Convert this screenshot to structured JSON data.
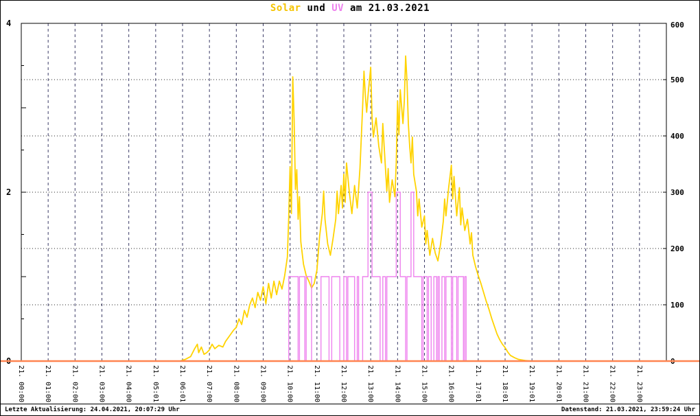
{
  "title": {
    "solar": "Solar",
    "und": " und ",
    "uv": "UV",
    "date": " am 21.03.2021"
  },
  "footer": {
    "left": "Letzte Aktualisierung: 24.04.2021, 20:07:29 Uhr",
    "right": "Datenstand: 21.03.2021, 23:59:24 Uhr"
  },
  "colors": {
    "solar": "#ffd300",
    "uv": "#ee82ee",
    "baseline": "#ff8450",
    "grid_v": "#3b3b66",
    "grid_h": "#222222",
    "axis": "#000000"
  },
  "chart_data": {
    "type": "line",
    "title": "Solar und UV am 21.03.2021",
    "grid": {
      "vertical": "dashed, every hour",
      "horizontal": "dotted, every 100 W/m2"
    },
    "legend": "none (colors indicated in title)",
    "x": {
      "min": 0,
      "max": 24,
      "tick_hours": [
        0,
        1,
        2,
        3,
        4,
        5,
        6,
        7,
        8,
        9,
        10,
        11,
        12,
        13,
        14,
        15,
        16,
        17,
        18,
        19,
        20,
        21,
        22,
        23
      ],
      "tick_labels": [
        "21. 00:00",
        "21. 01:00",
        "21. 02:00",
        "21. 03:00",
        "21. 04:00",
        "21. 05:01",
        "21. 06:01",
        "21. 07:00",
        "21. 08:00",
        "21. 09:00",
        "21. 10:00",
        "21. 11:00",
        "21. 12:00",
        "21. 13:00",
        "21. 14:00",
        "21. 15:00",
        "21. 16:00",
        "21. 17:01",
        "21. 18:01",
        "21. 19:01",
        "21. 20:01",
        "21. 21:00",
        "21. 22:00",
        "21. 23:00"
      ]
    },
    "left_axis": {
      "series": "UV",
      "min": 0,
      "max": 4,
      "ticks": [
        0,
        2,
        4
      ]
    },
    "right_axis": {
      "series": "Solar",
      "min": 0,
      "max": 600,
      "ticks": [
        0,
        100,
        200,
        300,
        400,
        500,
        600
      ]
    },
    "series": [
      {
        "name": "Solar",
        "axis": "right",
        "style": "line",
        "color_key": "solar",
        "points": [
          [
            0,
            0
          ],
          [
            5.9,
            0
          ],
          [
            6.1,
            3
          ],
          [
            6.3,
            8
          ],
          [
            6.45,
            22
          ],
          [
            6.55,
            30
          ],
          [
            6.6,
            15
          ],
          [
            6.7,
            25
          ],
          [
            6.8,
            12
          ],
          [
            6.9,
            15
          ],
          [
            7.0,
            20
          ],
          [
            7.1,
            30
          ],
          [
            7.2,
            22
          ],
          [
            7.35,
            28
          ],
          [
            7.5,
            25
          ],
          [
            7.6,
            35
          ],
          [
            7.75,
            45
          ],
          [
            7.9,
            55
          ],
          [
            8.0,
            60
          ],
          [
            8.1,
            75
          ],
          [
            8.2,
            65
          ],
          [
            8.3,
            90
          ],
          [
            8.4,
            78
          ],
          [
            8.5,
            100
          ],
          [
            8.6,
            112
          ],
          [
            8.7,
            95
          ],
          [
            8.8,
            122
          ],
          [
            8.9,
            108
          ],
          [
            9.0,
            132
          ],
          [
            9.1,
            102
          ],
          [
            9.2,
            138
          ],
          [
            9.3,
            112
          ],
          [
            9.4,
            142
          ],
          [
            9.5,
            118
          ],
          [
            9.6,
            142
          ],
          [
            9.7,
            128
          ],
          [
            9.8,
            152
          ],
          [
            9.9,
            185
          ],
          [
            9.95,
            255
          ],
          [
            10.0,
            345
          ],
          [
            10.05,
            262
          ],
          [
            10.1,
            505
          ],
          [
            10.15,
            430
          ],
          [
            10.2,
            305
          ],
          [
            10.25,
            340
          ],
          [
            10.3,
            252
          ],
          [
            10.35,
            292
          ],
          [
            10.4,
            212
          ],
          [
            10.5,
            172
          ],
          [
            10.6,
            152
          ],
          [
            10.7,
            142
          ],
          [
            10.8,
            130
          ],
          [
            10.9,
            138
          ],
          [
            11.0,
            162
          ],
          [
            11.1,
            222
          ],
          [
            11.2,
            262
          ],
          [
            11.25,
            302
          ],
          [
            11.3,
            252
          ],
          [
            11.4,
            208
          ],
          [
            11.5,
            188
          ],
          [
            11.6,
            218
          ],
          [
            11.7,
            252
          ],
          [
            11.75,
            302
          ],
          [
            11.8,
            262
          ],
          [
            11.9,
            312
          ],
          [
            11.95,
            272
          ],
          [
            12.0,
            332
          ],
          [
            12.05,
            282
          ],
          [
            12.1,
            352
          ],
          [
            12.2,
            302
          ],
          [
            12.3,
            262
          ],
          [
            12.4,
            312
          ],
          [
            12.5,
            272
          ],
          [
            12.6,
            342
          ],
          [
            12.7,
            452
          ],
          [
            12.75,
            515
          ],
          [
            12.8,
            472
          ],
          [
            12.85,
            442
          ],
          [
            12.9,
            472
          ],
          [
            13.0,
            522
          ],
          [
            13.05,
            432
          ],
          [
            13.1,
            398
          ],
          [
            13.2,
            432
          ],
          [
            13.3,
            382
          ],
          [
            13.4,
            352
          ],
          [
            13.45,
            422
          ],
          [
            13.5,
            382
          ],
          [
            13.6,
            302
          ],
          [
            13.65,
            342
          ],
          [
            13.7,
            282
          ],
          [
            13.8,
            322
          ],
          [
            13.9,
            292
          ],
          [
            13.95,
            352
          ],
          [
            14.0,
            462
          ],
          [
            14.05,
            402
          ],
          [
            14.1,
            482
          ],
          [
            14.2,
            422
          ],
          [
            14.25,
            462
          ],
          [
            14.3,
            542
          ],
          [
            14.35,
            498
          ],
          [
            14.4,
            422
          ],
          [
            14.45,
            382
          ],
          [
            14.5,
            352
          ],
          [
            14.55,
            398
          ],
          [
            14.6,
            332
          ],
          [
            14.7,
            302
          ],
          [
            14.75,
            258
          ],
          [
            14.8,
            288
          ],
          [
            14.9,
            238
          ],
          [
            15.0,
            258
          ],
          [
            15.05,
            208
          ],
          [
            15.1,
            232
          ],
          [
            15.2,
            188
          ],
          [
            15.3,
            218
          ],
          [
            15.4,
            192
          ],
          [
            15.5,
            178
          ],
          [
            15.6,
            208
          ],
          [
            15.7,
            248
          ],
          [
            15.75,
            288
          ],
          [
            15.8,
            258
          ],
          [
            15.9,
            308
          ],
          [
            16.0,
            348
          ],
          [
            16.05,
            288
          ],
          [
            16.1,
            328
          ],
          [
            16.2,
            258
          ],
          [
            16.3,
            308
          ],
          [
            16.35,
            242
          ],
          [
            16.4,
            272
          ],
          [
            16.5,
            232
          ],
          [
            16.6,
            252
          ],
          [
            16.7,
            208
          ],
          [
            16.75,
            228
          ],
          [
            16.8,
            188
          ],
          [
            16.9,
            168
          ],
          [
            17.0,
            152
          ],
          [
            17.1,
            138
          ],
          [
            17.2,
            122
          ],
          [
            17.3,
            106
          ],
          [
            17.4,
            92
          ],
          [
            17.5,
            76
          ],
          [
            17.6,
            62
          ],
          [
            17.7,
            48
          ],
          [
            17.8,
            38
          ],
          [
            17.9,
            30
          ],
          [
            18.0,
            24
          ],
          [
            18.1,
            16
          ],
          [
            18.2,
            10
          ],
          [
            18.35,
            6
          ],
          [
            18.5,
            3
          ],
          [
            18.75,
            1
          ],
          [
            19.0,
            0
          ],
          [
            24,
            0
          ]
        ]
      },
      {
        "name": "UV",
        "axis": "left",
        "style": "step",
        "color_key": "uv",
        "points": [
          [
            0,
            0
          ],
          [
            9.95,
            1
          ],
          [
            10.3,
            0
          ],
          [
            10.35,
            1
          ],
          [
            10.55,
            0
          ],
          [
            10.6,
            1
          ],
          [
            10.8,
            0
          ],
          [
            11.15,
            1
          ],
          [
            11.45,
            0
          ],
          [
            11.55,
            1
          ],
          [
            11.85,
            0
          ],
          [
            12.0,
            1
          ],
          [
            12.1,
            0
          ],
          [
            12.15,
            1
          ],
          [
            12.4,
            0
          ],
          [
            12.5,
            1
          ],
          [
            12.55,
            0
          ],
          [
            12.7,
            1
          ],
          [
            12.9,
            2
          ],
          [
            13.05,
            1
          ],
          [
            13.35,
            0
          ],
          [
            13.45,
            1
          ],
          [
            13.55,
            0
          ],
          [
            13.6,
            1
          ],
          [
            13.95,
            2
          ],
          [
            14.1,
            1
          ],
          [
            14.3,
            0
          ],
          [
            14.35,
            1
          ],
          [
            14.5,
            2
          ],
          [
            14.6,
            1
          ],
          [
            14.9,
            0
          ],
          [
            14.95,
            1
          ],
          [
            15.1,
            0
          ],
          [
            15.15,
            1
          ],
          [
            15.25,
            0
          ],
          [
            15.35,
            1
          ],
          [
            15.45,
            0
          ],
          [
            15.5,
            1
          ],
          [
            15.55,
            0
          ],
          [
            15.65,
            1
          ],
          [
            15.75,
            0
          ],
          [
            15.8,
            1
          ],
          [
            16.0,
            0
          ],
          [
            16.05,
            1
          ],
          [
            16.2,
            0
          ],
          [
            16.25,
            1
          ],
          [
            16.45,
            0
          ],
          [
            16.5,
            1
          ],
          [
            16.55,
            0
          ],
          [
            24,
            0
          ]
        ]
      },
      {
        "name": "Nulllinie",
        "axis": "right",
        "style": "baseline",
        "color_key": "baseline",
        "points": [
          [
            0,
            0
          ],
          [
            24,
            0
          ]
        ]
      }
    ]
  }
}
